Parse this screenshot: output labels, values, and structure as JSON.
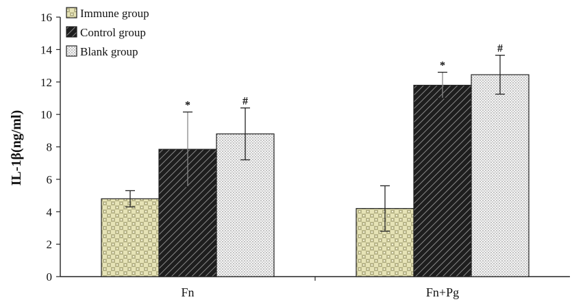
{
  "chart_data": {
    "type": "bar",
    "title": "",
    "xlabel": "",
    "ylabel": "IL-1β(ng/ml)",
    "ylim": [
      0,
      16
    ],
    "yticks": [
      0,
      2,
      4,
      6,
      8,
      10,
      12,
      14,
      16
    ],
    "categories": [
      "Fn",
      "Fn+Pg"
    ],
    "series": [
      {
        "name": "Immune group",
        "values": [
          4.8,
          4.2
        ],
        "errors": [
          0.5,
          1.4
        ],
        "markers": [
          "",
          ""
        ],
        "pattern": "checker-light",
        "color": "#e3e0b0"
      },
      {
        "name": "Control group",
        "values": [
          7.85,
          11.8
        ],
        "errors": [
          2.3,
          0.8
        ],
        "markers": [
          "*",
          "*"
        ],
        "pattern": "diagonal-dark",
        "color": "#2a2a2a"
      },
      {
        "name": "Blank group",
        "values": [
          8.8,
          12.45
        ],
        "errors": [
          1.6,
          1.2
        ],
        "markers": [
          "#",
          "#"
        ],
        "pattern": "dots",
        "color": "#f2f2f2"
      }
    ],
    "legend_position": "top-left",
    "grid": false
  }
}
